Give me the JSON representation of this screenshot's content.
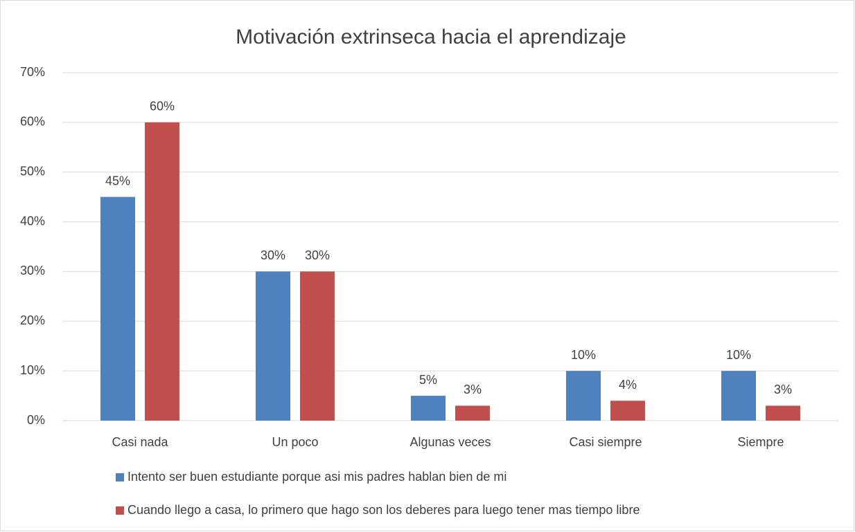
{
  "chart_data": {
    "type": "bar",
    "title": "Motivación extrinseca hacia el aprendizaje",
    "categories": [
      "Casi nada",
      "Un poco",
      "Algunas veces",
      "Casi siempre",
      "Siempre"
    ],
    "series": [
      {
        "name": "Intento ser buen estudiante porque asi mis padres hablan bien de mi",
        "color": "#4f81bd",
        "values": [
          45,
          30,
          5,
          10,
          10
        ],
        "value_labels": [
          "45%",
          "30%",
          "5%",
          "10%",
          "10%"
        ]
      },
      {
        "name": "Cuando llego a casa, lo primero que hago son los deberes para luego tener mas tiempo libre",
        "color": "#c0504d",
        "values": [
          60,
          30,
          3,
          4,
          3
        ],
        "value_labels": [
          "60%",
          "30%",
          "3%",
          "4%",
          "3%"
        ]
      }
    ],
    "ylim": [
      0,
      70
    ],
    "yticks": [
      {
        "value": 0,
        "label": "0%"
      },
      {
        "value": 10,
        "label": "10%"
      },
      {
        "value": 20,
        "label": "20%"
      },
      {
        "value": 30,
        "label": "30%"
      },
      {
        "value": 40,
        "label": "40%"
      },
      {
        "value": 50,
        "label": "50%"
      },
      {
        "value": 60,
        "label": "60%"
      },
      {
        "value": 70,
        "label": "70%"
      }
    ],
    "grid": true,
    "legend": "bottom"
  }
}
